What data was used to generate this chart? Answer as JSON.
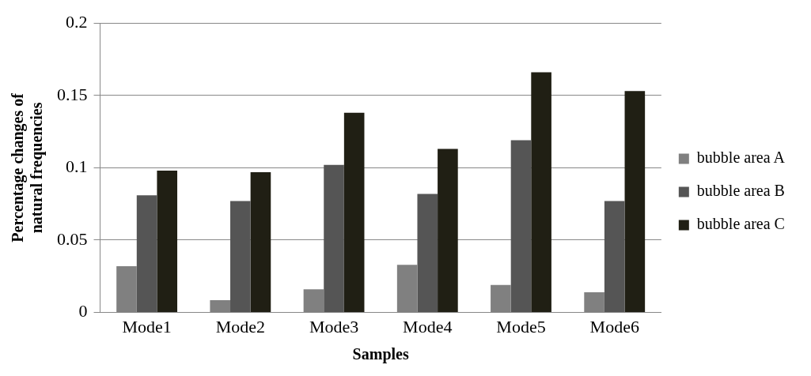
{
  "chart_data": {
    "type": "bar",
    "xlabel": "Samples",
    "ylabel": "Percentage changes of natural frequencies",
    "categories": [
      "Mode1",
      "Mode2",
      "Mode3",
      "Mode4",
      "Mode5",
      "Mode6"
    ],
    "series": [
      {
        "name": "bubble area A",
        "color": "#808080",
        "values": [
          0.032,
          0.0085,
          0.016,
          0.033,
          0.019,
          0.014
        ]
      },
      {
        "name": "bubble area B",
        "color": "#555555",
        "values": [
          0.081,
          0.077,
          0.102,
          0.082,
          0.119,
          0.077
        ]
      },
      {
        "name": "bubble area C",
        "color": "#201f14",
        "values": [
          0.098,
          0.097,
          0.138,
          0.113,
          0.166,
          0.153
        ]
      }
    ],
    "ylim": [
      0,
      0.2
    ],
    "yticks": [
      0,
      0.05,
      0.1,
      0.15,
      0.2
    ],
    "grid": "y",
    "legend": "right"
  }
}
